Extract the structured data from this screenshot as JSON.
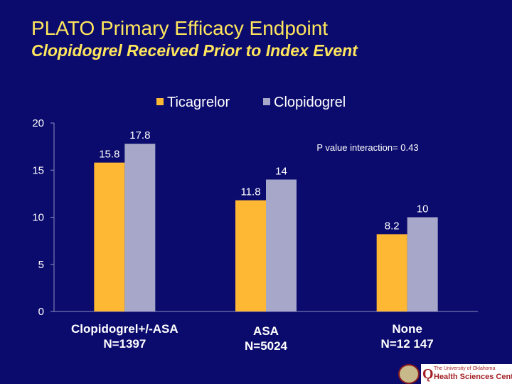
{
  "slide": {
    "title": "PLATO  Primary Efficacy Endpoint",
    "subtitle": "Clopidogrel Received Prior to Index Event"
  },
  "chart_data": {
    "type": "bar",
    "categories": [
      [
        "Clopidogrel+/-ASA",
        "N=1397"
      ],
      [
        "ASA",
        "N=5024"
      ],
      [
        "None",
        "N=12 147"
      ]
    ],
    "series": [
      {
        "name": "Ticagrelor",
        "color": "#ffb833",
        "values": [
          15.8,
          11.8,
          8.2
        ],
        "labels": [
          "15.8",
          "11.8",
          "8.2"
        ]
      },
      {
        "name": "Clopidogrel",
        "color": "#a7a7c9",
        "values": [
          17.8,
          14,
          10
        ],
        "labels": [
          "17.8",
          "14",
          "10"
        ]
      }
    ],
    "ylim": [
      0,
      20
    ],
    "yticks": [
      "0",
      "5",
      "10",
      "15",
      "20"
    ],
    "legend": "top-center",
    "annotation": "P value interaction=  0.43",
    "grid": false,
    "background": "#0b0b6e",
    "text_color": "#ffffff"
  },
  "logo": {
    "line1": "The University of Oklahoma",
    "line2": "Health Sciences Center"
  }
}
